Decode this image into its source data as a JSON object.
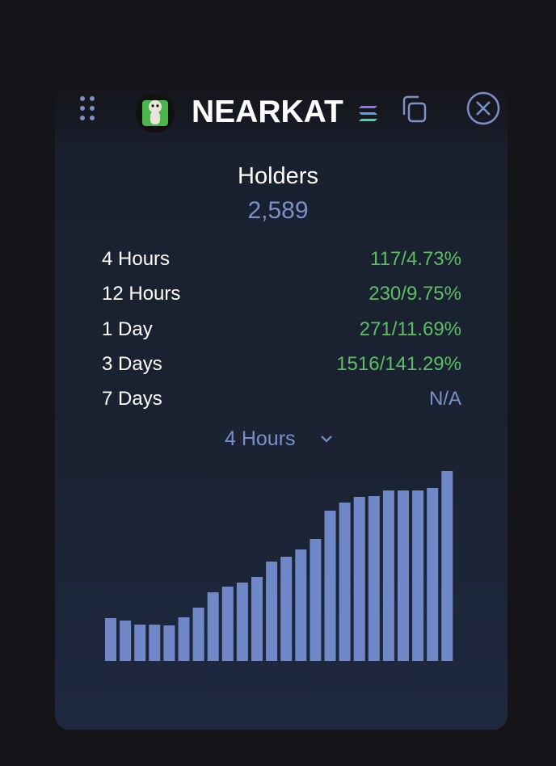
{
  "header": {
    "title": "NEARKAT"
  },
  "holders": {
    "label": "Holders",
    "value": "2,589"
  },
  "changes": [
    {
      "period": "4 Hours",
      "value": "117/4.73%"
    },
    {
      "period": "12 Hours",
      "value": "230/9.75%"
    },
    {
      "period": "1 Day",
      "value": "271/11.69%"
    },
    {
      "period": "3 Days",
      "value": "1516/141.29%"
    },
    {
      "period": "7 Days",
      "value": "N/A"
    }
  ],
  "dropdown": {
    "selected": "4 Hours"
  },
  "chart_data": {
    "type": "bar",
    "color": "#7088c8",
    "values": [
      53,
      50,
      45,
      45,
      44,
      54,
      66,
      85,
      92,
      97,
      104,
      123,
      129,
      138,
      151,
      186,
      196,
      203,
      204,
      211,
      211,
      211,
      214,
      235
    ]
  }
}
